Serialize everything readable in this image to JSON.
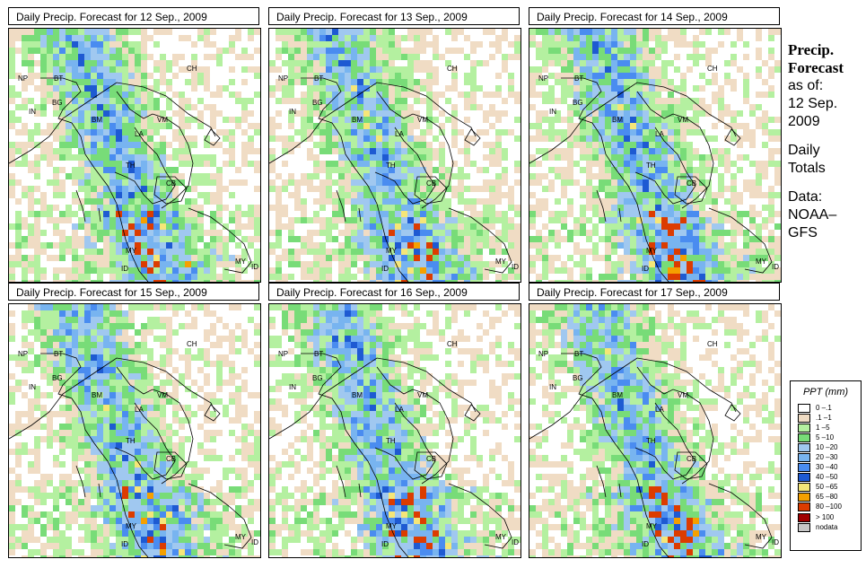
{
  "panels": [
    {
      "title": "Daily Precip. Forecast for  12 Sep., 2009"
    },
    {
      "title": "Daily Precip. Forecast for  13 Sep., 2009"
    },
    {
      "title": "Daily Precip. Forecast for  14 Sep., 2009"
    },
    {
      "title": "Daily Precip. Forecast for  15 Sep., 2009"
    },
    {
      "title": "Daily Precip. Forecast for  16 Sep., 2009"
    },
    {
      "title": "Daily Precip. Forecast for  17 Sep., 2009"
    }
  ],
  "country_labels": [
    "NP",
    "BT",
    "BG",
    "IN",
    "CH",
    "BM",
    "VM",
    "LA",
    "TH",
    "CB",
    "MY",
    "ID",
    "MY",
    "ID"
  ],
  "side": {
    "heading_1": "Precip.",
    "heading_2": "Forecast",
    "as_of": "as of:",
    "date_1": "12 Sep.",
    "date_2": "2009",
    "totals_1": "Daily",
    "totals_2": "Totals",
    "data_1": "Data:",
    "data_2": "NOAA–",
    "data_3": "GFS"
  },
  "legend": {
    "title": "PPT (mm)",
    "items": [
      {
        "label": "0 –.1",
        "color": "#ffffff"
      },
      {
        "label": ".1 –1",
        "color": "#f0dcc4"
      },
      {
        "label": "1 –5",
        "color": "#b4f0a0"
      },
      {
        "label": "5 –10",
        "color": "#78dc78"
      },
      {
        "label": "10 –20",
        "color": "#a0c8f0"
      },
      {
        "label": "20 –30",
        "color": "#78b4f0"
      },
      {
        "label": "30 –40",
        "color": "#4a8cf0"
      },
      {
        "label": "40 –50",
        "color": "#1e5ad2"
      },
      {
        "label": "50 –65",
        "color": "#f5e678"
      },
      {
        "label": "65 –80",
        "color": "#f5a000"
      },
      {
        "label": "80 –100",
        "color": "#dc3c00"
      },
      {
        "label": "> 100",
        "color": "#a00000"
      },
      {
        "label": "nodata",
        "color": "#c8c8c8"
      }
    ]
  }
}
